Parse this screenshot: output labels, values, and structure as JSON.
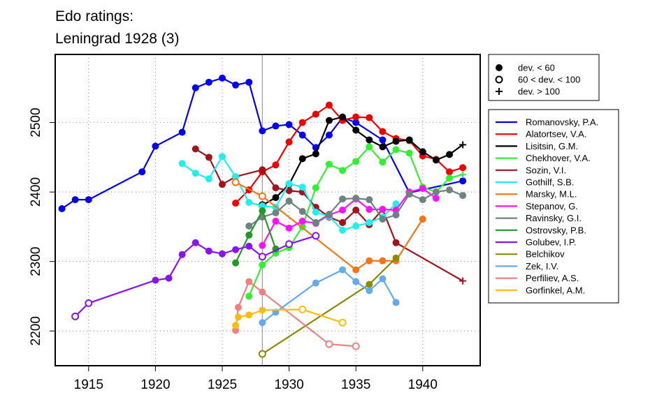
{
  "chart_data": {
    "type": "line",
    "title": "Edo ratings:",
    "subtitle": "Leningrad 1928 (3)",
    "xlabel": "",
    "ylabel": "",
    "xlim": [
      1912.5,
      1944.3
    ],
    "ylim": [
      2150,
      2598
    ],
    "x_ticks": [
      1915,
      1920,
      1925,
      1930,
      1935,
      1940
    ],
    "y_ticks": [
      2200,
      2300,
      2400,
      2500
    ],
    "grid": true,
    "event_year": 1928,
    "legend_markers": [
      {
        "symbol": "filled",
        "label": "dev. < 60"
      },
      {
        "symbol": "open",
        "label": "60 < dev. < 100"
      },
      {
        "symbol": "plus",
        "label": "dev. > 100"
      }
    ],
    "legend_position": "right",
    "series": [
      {
        "name": "Romanovsky, P.A.",
        "color": "#0000ee",
        "points": [
          [
            1913,
            2376,
            "f"
          ],
          [
            1914,
            2389,
            "f"
          ],
          [
            1915,
            2389,
            "f"
          ],
          [
            1919,
            2429,
            "f"
          ],
          [
            1920,
            2466,
            "f"
          ],
          [
            1922,
            2486,
            "f"
          ],
          [
            1923,
            2550,
            "f"
          ],
          [
            1924,
            2558,
            "f"
          ],
          [
            1925,
            2564,
            "f"
          ],
          [
            1926,
            2554,
            "f"
          ],
          [
            1927,
            2558,
            "f"
          ],
          [
            1928,
            2488,
            "f"
          ],
          [
            1929,
            2495,
            "f"
          ],
          [
            1930,
            2497,
            "f"
          ],
          [
            1931,
            2482,
            "f"
          ],
          [
            1932,
            2464,
            "f"
          ],
          [
            1933,
            2482,
            "f"
          ],
          [
            1934,
            2507,
            "f"
          ],
          [
            1935,
            2500,
            "f"
          ],
          [
            1937,
            2475,
            "f"
          ],
          [
            1939,
            2399,
            "f"
          ],
          [
            1943,
            2416,
            "f"
          ]
        ]
      },
      {
        "name": "Alatortsev, V.A.",
        "color": "#ee0000",
        "points": [
          [
            1926,
            2384,
            "f"
          ],
          [
            1927,
            2403,
            "f"
          ],
          [
            1928,
            2429,
            "f"
          ],
          [
            1929,
            2439,
            "f"
          ],
          [
            1930,
            2472,
            "f"
          ],
          [
            1931,
            2500,
            "f"
          ],
          [
            1932,
            2512,
            "f"
          ],
          [
            1933,
            2525,
            "f"
          ],
          [
            1934,
            2503,
            "f"
          ],
          [
            1935,
            2508,
            "f"
          ],
          [
            1936,
            2507,
            "f"
          ],
          [
            1937,
            2487,
            "f"
          ],
          [
            1938,
            2477,
            "f"
          ],
          [
            1939,
            2474,
            "f"
          ],
          [
            1940,
            2452,
            "f"
          ],
          [
            1941,
            2447,
            "f"
          ],
          [
            1942,
            2429,
            "f"
          ],
          [
            1943,
            2435,
            "f"
          ]
        ]
      },
      {
        "name": "Lisitsin, G.M.",
        "color": "#000000",
        "points": [
          [
            1928,
            2381,
            "o"
          ],
          [
            1929,
            2392,
            "f"
          ],
          [
            1930,
            2411,
            "f"
          ],
          [
            1931,
            2448,
            "f"
          ],
          [
            1932,
            2455,
            "f"
          ],
          [
            1933,
            2503,
            "f"
          ],
          [
            1934,
            2508,
            "f"
          ],
          [
            1935,
            2489,
            "f"
          ],
          [
            1936,
            2475,
            "f"
          ],
          [
            1937,
            2465,
            "f"
          ],
          [
            1938,
            2473,
            "f"
          ],
          [
            1939,
            2475,
            "f"
          ],
          [
            1940,
            2458,
            "f"
          ],
          [
            1941,
            2446,
            "f"
          ],
          [
            1942,
            2454,
            "f"
          ],
          [
            1943,
            2468,
            "n"
          ]
        ]
      },
      {
        "name": "Chekhover, V.A.",
        "color": "#33ee33",
        "points": [
          [
            1927,
            2250,
            "f"
          ],
          [
            1928,
            2295,
            "f"
          ],
          [
            1929,
            2312,
            "f"
          ],
          [
            1930,
            2320,
            "f"
          ],
          [
            1931,
            2350,
            "f"
          ],
          [
            1932,
            2406,
            "f"
          ],
          [
            1933,
            2440,
            "f"
          ],
          [
            1934,
            2431,
            "f"
          ],
          [
            1935,
            2444,
            "f"
          ],
          [
            1936,
            2465,
            "f"
          ],
          [
            1937,
            2443,
            "f"
          ],
          [
            1938,
            2461,
            "f"
          ],
          [
            1939,
            2456,
            "f"
          ],
          [
            1940,
            2407,
            "f"
          ],
          [
            1941,
            2400,
            "f"
          ],
          [
            1942,
            2420,
            "f"
          ],
          [
            1943,
            2425,
            "n"
          ]
        ]
      },
      {
        "name": "Sozin, V.I.",
        "color": "#a0141e",
        "points": [
          [
            1923,
            2462,
            "f"
          ],
          [
            1924,
            2450,
            "f"
          ],
          [
            1925,
            2411,
            "f"
          ],
          [
            1926,
            2422,
            "f"
          ],
          [
            1928,
            2432,
            "f"
          ],
          [
            1929,
            2406,
            "f"
          ],
          [
            1930,
            2402,
            "f"
          ],
          [
            1931,
            2400,
            "f"
          ],
          [
            1932,
            2378,
            "f"
          ],
          [
            1933,
            2364,
            "f"
          ],
          [
            1934,
            2356,
            "f"
          ],
          [
            1935,
            2374,
            "f"
          ],
          [
            1936,
            2353,
            "f"
          ],
          [
            1937,
            2375,
            "f"
          ],
          [
            1938,
            2327,
            "f"
          ],
          [
            1943,
            2272,
            "n"
          ]
        ]
      },
      {
        "name": "Gothilf, S.B.",
        "color": "#22eeee",
        "points": [
          [
            1922,
            2441,
            "f"
          ],
          [
            1923,
            2427,
            "f"
          ],
          [
            1924,
            2419,
            "f"
          ],
          [
            1925,
            2451,
            "f"
          ],
          [
            1926,
            2422,
            "f"
          ],
          [
            1927,
            2385,
            "f"
          ],
          [
            1928,
            2380,
            "f"
          ],
          [
            1929,
            2378,
            "f"
          ],
          [
            1930,
            2412,
            "f"
          ],
          [
            1931,
            2407,
            "f"
          ],
          [
            1932,
            2371,
            "f"
          ],
          [
            1933,
            2365,
            "f"
          ],
          [
            1934,
            2345,
            "f"
          ],
          [
            1935,
            2351,
            "f"
          ],
          [
            1936,
            2356,
            "f"
          ],
          [
            1937,
            2364,
            "f"
          ],
          [
            1938,
            2383,
            "f"
          ]
        ]
      },
      {
        "name": "Marsky, M.L.",
        "color": "#f57418",
        "points": [
          [
            1926,
            2414,
            "o"
          ],
          [
            1928,
            2394,
            "o"
          ],
          [
            1935,
            2288,
            "f"
          ],
          [
            1936,
            2301,
            "f"
          ],
          [
            1937,
            2301,
            "f"
          ],
          [
            1938,
            2301,
            "f"
          ],
          [
            1940,
            2361,
            "f"
          ]
        ]
      },
      {
        "name": "Stepanov, G.",
        "color": "#ff11ff",
        "points": [
          [
            1928,
            2323,
            "f"
          ],
          [
            1929,
            2358,
            "f"
          ],
          [
            1930,
            2348,
            "f"
          ],
          [
            1931,
            2358,
            "f"
          ],
          [
            1932,
            2355,
            "f"
          ],
          [
            1933,
            2367,
            "f"
          ],
          [
            1934,
            2374,
            "f"
          ],
          [
            1935,
            2390,
            "f"
          ],
          [
            1936,
            2375,
            "f"
          ],
          [
            1937,
            2375,
            "f"
          ],
          [
            1938,
            2374,
            "f"
          ],
          [
            1939,
            2400,
            "f"
          ],
          [
            1940,
            2405,
            "f"
          ],
          [
            1941,
            2391,
            "f"
          ]
        ]
      },
      {
        "name": "Ravinsky, G.I.",
        "color": "#6e8282",
        "points": [
          [
            1927,
            2351,
            "f"
          ],
          [
            1928,
            2364,
            "f"
          ],
          [
            1929,
            2370,
            "f"
          ],
          [
            1930,
            2387,
            "f"
          ],
          [
            1931,
            2372,
            "f"
          ],
          [
            1932,
            2356,
            "f"
          ],
          [
            1933,
            2368,
            "f"
          ],
          [
            1934,
            2390,
            "f"
          ],
          [
            1935,
            2391,
            "f"
          ],
          [
            1936,
            2389,
            "f"
          ],
          [
            1937,
            2361,
            "f"
          ],
          [
            1938,
            2367,
            "f"
          ],
          [
            1939,
            2397,
            "f"
          ],
          [
            1940,
            2389,
            "f"
          ],
          [
            1941,
            2400,
            "f"
          ],
          [
            1942,
            2403,
            "f"
          ],
          [
            1943,
            2395,
            "f"
          ]
        ]
      },
      {
        "name": "Ostrovsky, P.B.",
        "color": "#229922",
        "points": [
          [
            1926,
            2298,
            "f"
          ],
          [
            1927,
            2338,
            "f"
          ],
          [
            1928,
            2373,
            "f"
          ],
          [
            1929,
            2318,
            "f"
          ]
        ]
      },
      {
        "name": "Golubev, I.P.",
        "color": "#8a14ee",
        "points": [
          [
            1914,
            2221,
            "o"
          ],
          [
            1915,
            2240,
            "o"
          ],
          [
            1920,
            2273,
            "f"
          ],
          [
            1921,
            2276,
            "f"
          ],
          [
            1922,
            2310,
            "f"
          ],
          [
            1923,
            2327,
            "f"
          ],
          [
            1924,
            2315,
            "f"
          ],
          [
            1925,
            2311,
            "f"
          ],
          [
            1926,
            2317,
            "f"
          ],
          [
            1927,
            2322,
            "f"
          ],
          [
            1928,
            2307,
            "o"
          ],
          [
            1930,
            2325,
            "o"
          ],
          [
            1932,
            2337,
            "o"
          ]
        ]
      },
      {
        "name": "Belchikov",
        "color": "#8b8b00",
        "points": [
          [
            1928,
            2167,
            "o"
          ],
          [
            1936,
            2267,
            "f"
          ],
          [
            1938,
            2305,
            "f"
          ]
        ]
      },
      {
        "name": "Zek, I.V.",
        "color": "#66aaee",
        "points": [
          [
            1928,
            2212,
            "f"
          ],
          [
            1929,
            2227,
            "f"
          ],
          [
            1932,
            2269,
            "f"
          ],
          [
            1934,
            2288,
            "f"
          ],
          [
            1935,
            2271,
            "f"
          ],
          [
            1936,
            2258,
            "f"
          ],
          [
            1937,
            2275,
            "f"
          ],
          [
            1938,
            2241,
            "f"
          ]
        ]
      },
      {
        "name": "Perfiliev, A.S.",
        "color": "#f08080",
        "points": [
          [
            1926,
            2201,
            "f"
          ],
          [
            1926.2,
            2234,
            "f"
          ],
          [
            1927,
            2271,
            "f"
          ],
          [
            1928,
            2256,
            "f"
          ],
          [
            1933,
            2181,
            "o"
          ],
          [
            1935,
            2178,
            "o"
          ]
        ]
      },
      {
        "name": "Gorfinkel, A.M.",
        "color": "#ffbb11",
        "points": [
          [
            1926,
            2208,
            "f"
          ],
          [
            1926.2,
            2220,
            "f"
          ],
          [
            1927,
            2223,
            "f"
          ],
          [
            1928,
            2230,
            "f"
          ],
          [
            1931,
            2231,
            "o"
          ],
          [
            1934,
            2212,
            "o"
          ]
        ]
      }
    ]
  }
}
